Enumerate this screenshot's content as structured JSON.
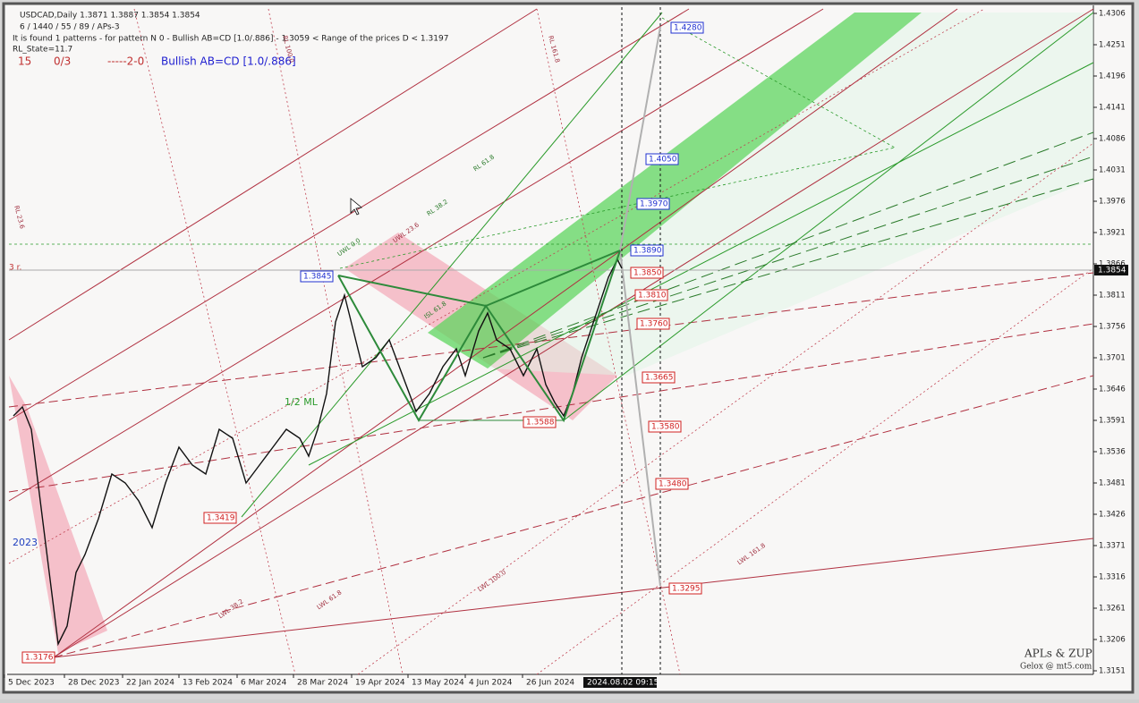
{
  "header": {
    "symbol_line": "USDCAD,Daily  1.3871 1.3887 1.3854 1.3854",
    "settings_line": "6 / 1440 / 55 / 89 / APs-3",
    "pattern_line": "It is found 1 patterns  -  for pattern N 0 - Bullish AB=CD [1.0/.886] - 1.3059 < Range of the prices D < 1.3197",
    "state_line": "RL_State=11.7",
    "status": [
      "15",
      "0/3",
      "-----2-0"
    ],
    "pattern_name": "Bullish AB=CD [1.0/.886]"
  },
  "price_axis": {
    "labels": [
      "1.4306",
      "1.4251",
      "1.4196",
      "1.4141",
      "1.4086",
      "1.4031",
      "1.3976",
      "1.3921",
      "1.3866",
      "1.3811",
      "1.3756",
      "1.3701",
      "1.3646",
      "1.3591",
      "1.3536",
      "1.3481",
      "1.3426",
      "1.3371",
      "1.3316",
      "1.3261",
      "1.3206",
      "1.3151"
    ],
    "current": "1.3854"
  },
  "time_axis": {
    "labels": [
      "5 Dec 2023",
      "28 Dec 2023",
      "22 Jan 2024",
      "13 Feb 2024",
      "6 Mar 2024",
      "28 Mar 2024",
      "19 Apr 2024",
      "13 May 2024",
      "4 Jun 2024",
      "26 Jun 2024"
    ],
    "cursor": "2024.08.02 09:15"
  },
  "levels": [
    "1.4280",
    "1.4050",
    "1.3970",
    "1.3890",
    "1.3850",
    "1.3810",
    "1.3760",
    "1.3665",
    "1.3580",
    "1.3480",
    "1.3295",
    "1.3845",
    "1.3588",
    "1.3419",
    "1.3176"
  ],
  "annotations": [
    "1/2 ML",
    "2023",
    "3 r.",
    "UWL 0.0",
    "UWL 23.6",
    "RL 38.2",
    "RL 61.8",
    "RL 100.0",
    "ISL 61.8",
    "LWL 38.2",
    "LWL 61.8",
    "LWL 100.0",
    "LWL 161.8",
    "RL 23.6",
    "RL 161.8"
  ],
  "footer": {
    "brand": "APLs & ZUP",
    "credit": "Gelox @ mt5.com"
  }
}
